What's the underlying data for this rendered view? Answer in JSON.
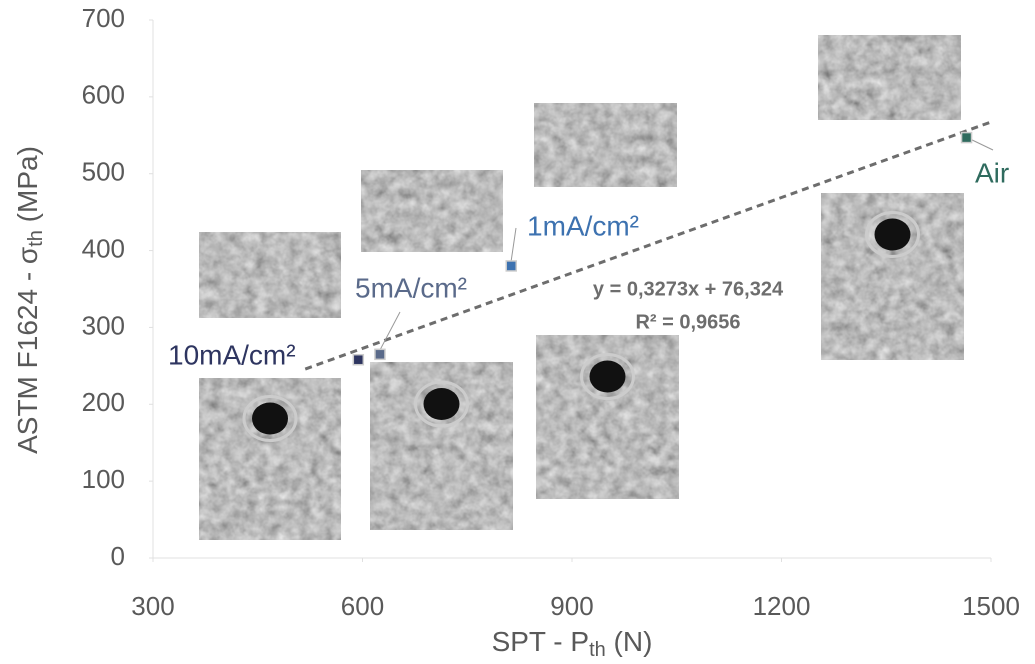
{
  "chart_data": {
    "type": "scatter",
    "x_label": {
      "main": "SPT - P",
      "sub": "th",
      "unit": " (N)"
    },
    "y_label": {
      "main": "ASTM F1624 - σ",
      "sub": "th",
      "unit": " (MPa)"
    },
    "xlim": [
      300,
      1500
    ],
    "xticks": [
      300,
      600,
      900,
      1200,
      1500
    ],
    "ylim": [
      0,
      700
    ],
    "yticks": [
      0,
      100,
      200,
      300,
      400,
      500,
      600,
      700
    ],
    "series": [
      {
        "name": "10mA/cm²",
        "color": "#2e3560",
        "x": [
          594
        ],
        "values": [
          258
        ]
      },
      {
        "name": "5mA/cm²",
        "color": "#5a6a8a",
        "x": [
          625
        ],
        "values": [
          265
        ]
      },
      {
        "name": "1mA/cm²",
        "color": "#3d72b0",
        "x": [
          813
        ],
        "values": [
          380
        ]
      },
      {
        "name": "Air",
        "color": "#2f6b5e",
        "x": [
          1465
        ],
        "values": [
          547
        ]
      }
    ],
    "trendline": {
      "slope": 0.3273,
      "intercept": 76.324,
      "x": [
        518,
        1500
      ],
      "equation": "y = 0,3273x + 76,324",
      "r2_label": "R² = 0,9656"
    }
  }
}
